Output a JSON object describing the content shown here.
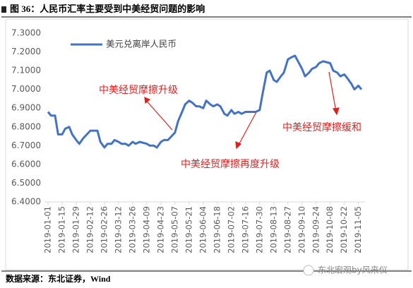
{
  "header": {
    "title": "图 36：人民币汇率主要受到中美经贸问题的影响"
  },
  "chart_data": {
    "type": "line",
    "x": [
      "2019-01-01",
      "2019-01-04",
      "2019-01-08",
      "2019-01-11",
      "2019-01-15",
      "2019-01-18",
      "2019-01-22",
      "2019-01-25",
      "2019-01-29",
      "2019-02-01",
      "2019-02-05",
      "2019-02-12",
      "2019-02-15",
      "2019-02-19",
      "2019-02-22",
      "2019-02-26",
      "2019-03-01",
      "2019-03-05",
      "2019-03-08",
      "2019-03-12",
      "2019-03-15",
      "2019-03-19",
      "2019-03-22",
      "2019-03-26",
      "2019-03-29",
      "2019-04-02",
      "2019-04-09",
      "2019-04-12",
      "2019-04-16",
      "2019-04-19",
      "2019-04-23",
      "2019-04-26",
      "2019-04-30",
      "2019-05-07",
      "2019-05-10",
      "2019-05-14",
      "2019-05-17",
      "2019-05-21",
      "2019-05-24",
      "2019-05-28",
      "2019-05-31",
      "2019-06-04",
      "2019-06-07",
      "2019-06-11",
      "2019-06-14",
      "2019-06-18",
      "2019-06-21",
      "2019-06-25",
      "2019-06-28",
      "2019-07-02",
      "2019-07-05",
      "2019-07-09",
      "2019-07-12",
      "2019-07-16",
      "2019-07-19",
      "2019-07-23",
      "2019-07-26",
      "2019-07-30",
      "2019-08-02",
      "2019-08-06",
      "2019-08-09",
      "2019-08-13",
      "2019-08-16",
      "2019-08-20",
      "2019-08-23",
      "2019-08-27",
      "2019-08-30",
      "2019-09-03",
      "2019-09-06",
      "2019-09-10",
      "2019-09-13",
      "2019-09-17",
      "2019-09-20",
      "2019-09-24",
      "2019-09-27",
      "2019-10-01",
      "2019-10-08",
      "2019-10-11",
      "2019-10-15",
      "2019-10-18",
      "2019-10-22",
      "2019-10-25",
      "2019-10-29",
      "2019-11-01",
      "2019-11-05",
      "2019-11-08"
    ],
    "series": [
      {
        "name": "美元兑离岸人民币",
        "color": "#4472c4",
        "values": [
          6.88,
          6.86,
          6.86,
          6.76,
          6.76,
          6.79,
          6.8,
          6.76,
          6.73,
          6.71,
          6.74,
          6.78,
          6.78,
          6.78,
          6.72,
          6.69,
          6.71,
          6.71,
          6.73,
          6.72,
          6.71,
          6.71,
          6.7,
          6.72,
          6.71,
          6.72,
          6.71,
          6.7,
          6.7,
          6.69,
          6.72,
          6.73,
          6.73,
          6.77,
          6.83,
          6.88,
          6.92,
          6.94,
          6.93,
          6.91,
          6.91,
          6.9,
          6.94,
          6.92,
          6.91,
          6.92,
          6.91,
          6.87,
          6.86,
          6.89,
          6.87,
          6.88,
          6.87,
          6.88,
          6.88,
          6.88,
          6.88,
          6.89,
          6.98,
          7.09,
          7.1,
          7.05,
          7.04,
          7.07,
          7.09,
          7.16,
          7.17,
          7.18,
          7.15,
          7.11,
          7.07,
          7.09,
          7.11,
          7.12,
          7.14,
          7.15,
          7.14,
          7.1,
          7.09,
          7.07,
          7.08,
          7.06,
          7.03,
          7.0,
          7.02,
          7.0
        ]
      }
    ],
    "xlim": [
      "2019-01-01",
      "2019-11-08"
    ],
    "xticks": [
      "2019-01-01",
      "2019-01-15",
      "2019-01-29",
      "2019-02-12",
      "2019-02-26",
      "2019-03-12",
      "2019-03-26",
      "2019-04-09",
      "2019-04-23",
      "2019-05-07",
      "2019-05-21",
      "2019-06-04",
      "2019-06-18",
      "2019-07-02",
      "2019-07-16",
      "2019-07-30",
      "2019-08-13",
      "2019-08-27",
      "2019-09-10",
      "2019-09-24",
      "2019-10-08",
      "2019-10-22",
      "2019-11-05"
    ],
    "ylim": [
      6.4,
      7.3
    ],
    "yticks": [
      {
        "value": 6.4,
        "label": "6.4000"
      },
      {
        "value": 6.5,
        "label": "6.5000"
      },
      {
        "value": 6.6,
        "label": "6.6000"
      },
      {
        "value": 6.7,
        "label": "6.7000"
      },
      {
        "value": 6.8,
        "label": "6.8000"
      },
      {
        "value": 6.9,
        "label": "6.9000"
      },
      {
        "value": 7.0,
        "label": "7.0000"
      },
      {
        "value": 7.1,
        "label": "7.1000"
      },
      {
        "value": 7.2,
        "label": "7.2000"
      },
      {
        "value": 7.3,
        "label": "7.3000"
      }
    ],
    "annotations": [
      "中美经贸摩擦升级",
      "中美经贸摩擦再度升级",
      "中美经贸摩擦缓和"
    ],
    "annotation_color": "#e02020"
  },
  "footer": {
    "source": "数据来源：东北证券，Wind",
    "watermark": "东北宏观by风来仪"
  }
}
